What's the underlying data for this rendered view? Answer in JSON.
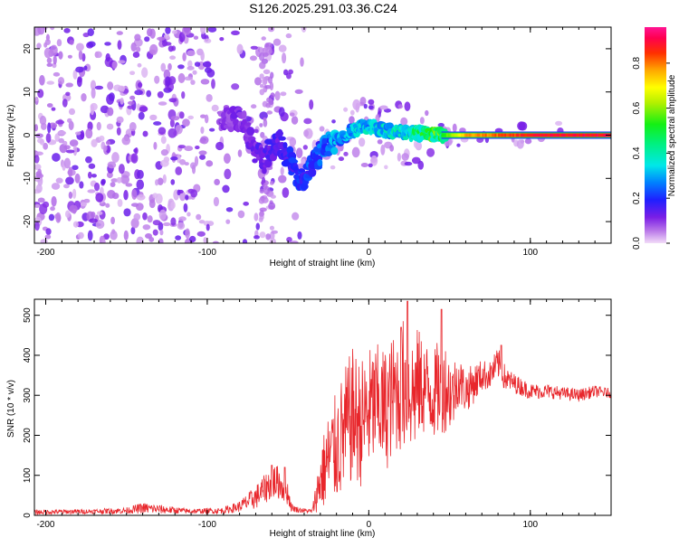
{
  "title": "S126.2025.291.03.36.C24",
  "chart_data": [
    {
      "type": "heatmap",
      "xlabel": "Height of straight line (km)",
      "ylabel": "Frequency (Hz)",
      "xlim": [
        -207,
        150
      ],
      "ylim": [
        -25,
        25
      ],
      "x_ticks": [
        -200,
        -100,
        0,
        100
      ],
      "y_ticks": [
        20,
        10,
        0,
        -10,
        -20
      ],
      "colorbar": {
        "label": "Normalized spectral amplitude",
        "range": [
          0,
          0.96
        ],
        "ticks": [
          0.0,
          0.2,
          0.4,
          0.6,
          0.8
        ]
      },
      "ridge": {
        "description": "dominant frequency ridge vs height",
        "points": [
          [
            -90,
            4
          ],
          [
            -80,
            4
          ],
          [
            -75,
            1
          ],
          [
            -70,
            -4
          ],
          [
            -65,
            -6
          ],
          [
            -60,
            -3
          ],
          [
            -55,
            -2
          ],
          [
            -50,
            -5
          ],
          [
            -45,
            -9
          ],
          [
            -40,
            -11
          ],
          [
            -35,
            -7
          ],
          [
            -30,
            -4
          ],
          [
            -25,
            -2
          ],
          [
            -20,
            -1
          ],
          [
            -15,
            0
          ],
          [
            -10,
            1
          ],
          [
            -5,
            2
          ],
          [
            0,
            2
          ],
          [
            10,
            1
          ],
          [
            20,
            0.5
          ],
          [
            30,
            0.5
          ],
          [
            40,
            0.2
          ],
          [
            50,
            0
          ],
          [
            150,
            0
          ]
        ]
      },
      "amplitude_profile": [
        [
          -90,
          0.1
        ],
        [
          -60,
          0.15
        ],
        [
          -40,
          0.22
        ],
        [
          -20,
          0.3
        ],
        [
          0,
          0.35
        ],
        [
          20,
          0.38
        ],
        [
          45,
          0.55
        ],
        [
          60,
          0.8
        ],
        [
          100,
          0.92
        ],
        [
          150,
          0.94
        ]
      ]
    },
    {
      "type": "line",
      "xlabel": "Height of straight line (km)",
      "ylabel": "SNR (10 * v/v)",
      "xlim": [
        -207,
        150
      ],
      "ylim": [
        0,
        540
      ],
      "x_ticks": [
        -200,
        -100,
        0,
        100
      ],
      "y_ticks": [
        0,
        100,
        200,
        300,
        400,
        500
      ],
      "series": [
        {
          "name": "SNR",
          "color": "#e8262b",
          "envelope_x": [
            -207,
            -170,
            -150,
            -140,
            -110,
            -90,
            -80,
            -70,
            -62,
            -58,
            -55,
            -50,
            -48,
            -45,
            -40,
            -35,
            -30,
            -25,
            -20,
            -15,
            -10,
            -5,
            0,
            5,
            10,
            15,
            20,
            22,
            25,
            28,
            30,
            35,
            40,
            45,
            48,
            52,
            55,
            60,
            65,
            70,
            75,
            80,
            82,
            85,
            90,
            95,
            100,
            110,
            120,
            130,
            140,
            150
          ],
          "envelope_center": [
            8,
            10,
            12,
            18,
            10,
            12,
            22,
            45,
            75,
            85,
            80,
            55,
            20,
            15,
            12,
            10,
            90,
            140,
            170,
            210,
            250,
            230,
            260,
            280,
            260,
            300,
            320,
            330,
            320,
            300,
            330,
            320,
            300,
            330,
            320,
            300,
            340,
            310,
            330,
            350,
            350,
            380,
            360,
            340,
            330,
            320,
            310,
            310,
            305,
            300,
            310,
            305
          ],
          "envelope_spread": [
            6,
            6,
            8,
            14,
            6,
            8,
            14,
            30,
            40,
            45,
            40,
            30,
            10,
            8,
            6,
            5,
            80,
            120,
            140,
            160,
            170,
            160,
            160,
            150,
            160,
            150,
            160,
            170,
            160,
            150,
            140,
            120,
            110,
            130,
            110,
            90,
            70,
            55,
            50,
            40,
            35,
            40,
            40,
            30,
            25,
            22,
            20,
            18,
            16,
            16,
            15,
            12
          ],
          "peaks": [
            [
              -60,
              125
            ],
            [
              -52,
              120
            ],
            [
              24,
              535
            ],
            [
              45,
              515
            ],
            [
              20,
              470
            ],
            [
              82,
              425
            ]
          ]
        }
      ]
    }
  ]
}
